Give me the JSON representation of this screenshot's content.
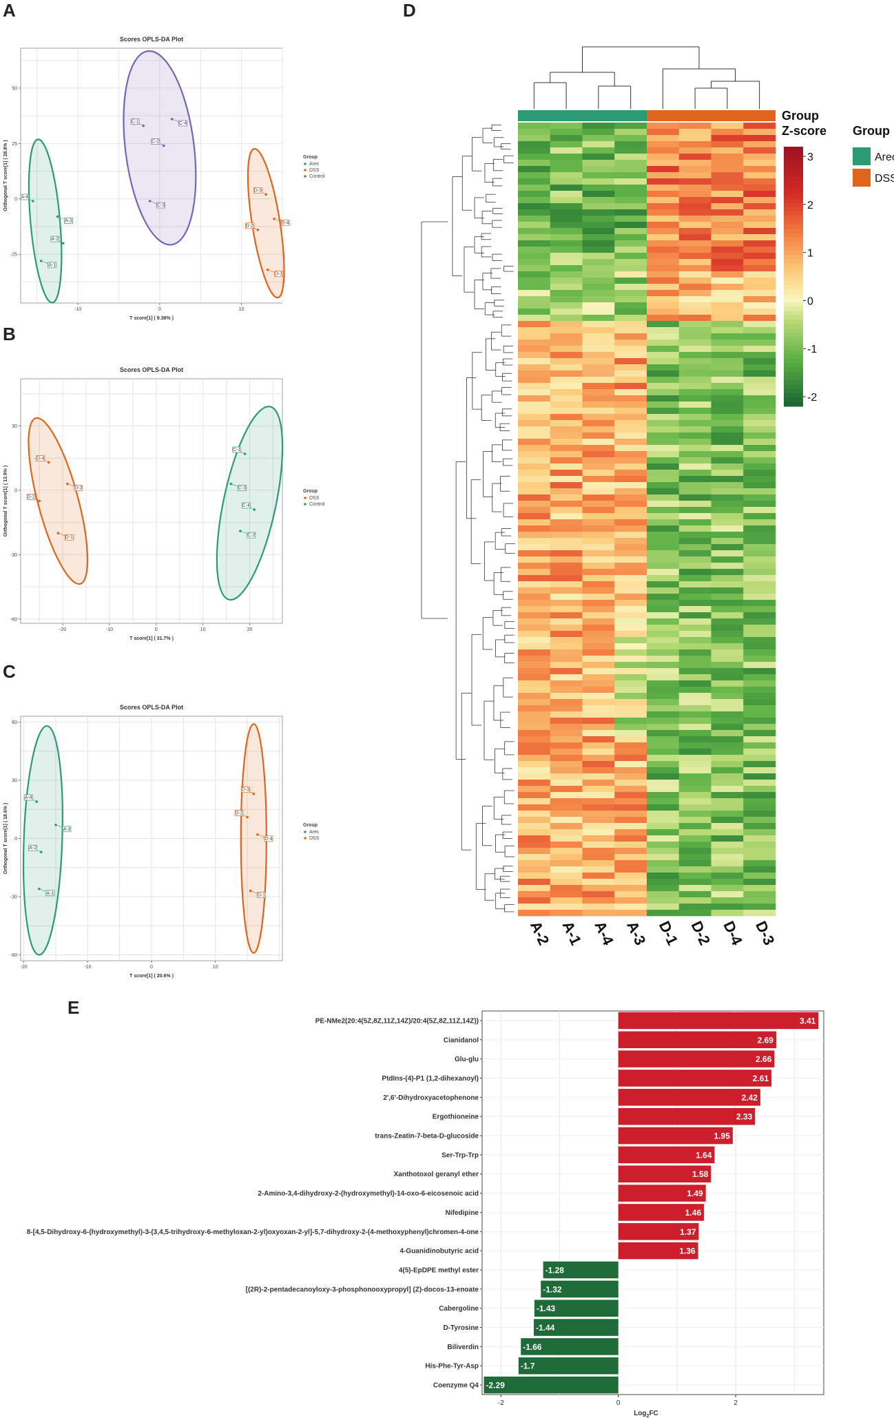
{
  "panels": {
    "A": "A",
    "B": "B",
    "C": "C",
    "D": "D",
    "E": "E"
  },
  "colors": {
    "arec": "#2c9b74",
    "dss": "#e0641a",
    "control": "#7a62b8",
    "up": "#cd1f2b",
    "down": "#1e6b37"
  },
  "chart_data": [
    {
      "type": "scatter",
      "panel": "A",
      "title": "Scores OPLS-DA Plot",
      "xlabel": "T score[1] ( 9.38% )",
      "ylabel": "Orthogonal T score[1] ( 28.8% )",
      "xticks": [
        "-10",
        "0",
        "10"
      ],
      "yticks": [
        "50",
        "25",
        "0",
        "-25"
      ],
      "legend": {
        "title": "Group",
        "entries": [
          "Arec",
          "DSS",
          "Control"
        ]
      },
      "xlim": [
        -17,
        15
      ],
      "ylim": [
        -47,
        68
      ],
      "ticks_x": [
        -10,
        0,
        10
      ],
      "ticks_y": [
        50,
        25,
        0,
        -25
      ],
      "groups": [
        {
          "name": "Arec",
          "color": "#2c9b74",
          "points": [
            {
              "x": -15.5,
              "y": -1,
              "label": "A-4"
            },
            {
              "x": -12.5,
              "y": -8,
              "label": "A-3"
            },
            {
              "x": -11.8,
              "y": -20,
              "label": "A-2"
            },
            {
              "x": -14.5,
              "y": -28,
              "label": "A-1"
            }
          ],
          "ellipse": {
            "cx": -14,
            "cy": -10,
            "rx": 1.8,
            "ry": 37,
            "rot": -5
          }
        },
        {
          "name": "DSS",
          "color": "#e0641a",
          "points": [
            {
              "x": 13,
              "y": 2,
              "label": "D-3"
            },
            {
              "x": 14,
              "y": -9,
              "label": "D-4"
            },
            {
              "x": 12,
              "y": -14,
              "label": "D-2"
            },
            {
              "x": 13.2,
              "y": -32,
              "label": "D-1"
            }
          ],
          "ellipse": {
            "cx": 13,
            "cy": -11,
            "rx": 1.7,
            "ry": 34,
            "rot": -9
          }
        },
        {
          "name": "Control",
          "color": "#7a62b8",
          "points": [
            {
              "x": -2,
              "y": 33,
              "label": "C-1"
            },
            {
              "x": 1.5,
              "y": 36,
              "label": "C-4"
            },
            {
              "x": 0.5,
              "y": 24,
              "label": "C-2"
            },
            {
              "x": -1.2,
              "y": -1,
              "label": "C-3"
            }
          ],
          "ellipse": {
            "cx": 0,
            "cy": 23,
            "rx": 4.2,
            "ry": 44,
            "rot": -7
          }
        }
      ]
    },
    {
      "type": "scatter",
      "panel": "B",
      "title": "Scores OPLS-DA Plot",
      "xlabel": "T score[1] ( 31.7% )",
      "ylabel": "Orthogonal T score[1] ( 13.9% )",
      "xticks": [
        "-20",
        "-10",
        "0",
        "10",
        "20"
      ],
      "yticks": [
        "30",
        "0",
        "-30",
        "-60"
      ],
      "legend": {
        "title": "Group",
        "entries": [
          "DSS",
          "Control"
        ]
      },
      "xlim": [
        -29,
        27
      ],
      "ylim": [
        -62,
        52
      ],
      "ticks_x": [
        -20,
        -10,
        0,
        10,
        20
      ],
      "ticks_y": [
        30,
        0,
        -30,
        -60
      ],
      "groups": [
        {
          "name": "DSS",
          "color": "#e0641a",
          "points": [
            {
              "x": -23,
              "y": 13,
              "label": "D-4"
            },
            {
              "x": -19,
              "y": 3,
              "label": "D-3"
            },
            {
              "x": -25,
              "y": -5,
              "label": "D-2"
            },
            {
              "x": -21,
              "y": -20,
              "label": "D-1"
            }
          ],
          "ellipse": {
            "cx": -21,
            "cy": -5,
            "rx": 4.3,
            "ry": 40,
            "rot": -15
          }
        },
        {
          "name": "Control",
          "color": "#2c9b74",
          "points": [
            {
              "x": 19,
              "y": 17,
              "label": "C-1"
            },
            {
              "x": 16,
              "y": 3,
              "label": "C-3"
            },
            {
              "x": 21,
              "y": -9,
              "label": "C-4"
            },
            {
              "x": 18,
              "y": -19,
              "label": "C-2"
            }
          ],
          "ellipse": {
            "cx": 20,
            "cy": -6,
            "rx": 5.6,
            "ry": 46,
            "rot": 12
          }
        }
      ]
    },
    {
      "type": "scatter",
      "panel": "C",
      "title": "Scores OPLS-DA Plot",
      "xlabel": "T score[1] ( 20.6% )",
      "ylabel": "Orthogonal T score[1] ( 18.6% )",
      "xticks": [
        "-20",
        "-10",
        "0",
        "10"
      ],
      "yticks": [
        "60",
        "30",
        "0",
        "-30",
        "-60"
      ],
      "legend": {
        "title": "Group",
        "entries": [
          "Arec",
          "DSS"
        ]
      },
      "xlim": [
        -20.5,
        20.5
      ],
      "ylim": [
        -63,
        63
      ],
      "ticks_x": [
        -20,
        -10,
        0,
        10
      ],
      "ticks_y": [
        60,
        30,
        0,
        -30,
        -60
      ],
      "groups": [
        {
          "name": "Arec",
          "color": "#2c9b74",
          "points": [
            {
              "x": -18,
              "y": 19,
              "label": "A-4"
            },
            {
              "x": -15,
              "y": 7,
              "label": "A-3"
            },
            {
              "x": -17.3,
              "y": -7,
              "label": "A-2"
            },
            {
              "x": -17.6,
              "y": -26,
              "label": "A-1"
            }
          ],
          "ellipse": {
            "cx": -17,
            "cy": -1,
            "rx": 3.0,
            "ry": 59,
            "rot": 2
          }
        },
        {
          "name": "DSS",
          "color": "#e0641a",
          "points": [
            {
              "x": 16,
              "y": 23,
              "label": "D-3"
            },
            {
              "x": 16.6,
              "y": 2,
              "label": "D-4"
            },
            {
              "x": 15,
              "y": 11,
              "label": "D-2"
            },
            {
              "x": 15.5,
              "y": -27,
              "label": "D-1"
            }
          ],
          "ellipse": {
            "cx": 16,
            "cy": 0,
            "rx": 2.0,
            "ry": 59,
            "rot": 0
          }
        }
      ]
    },
    {
      "type": "heatmap",
      "panel": "D",
      "columns": [
        "A-2",
        "A-1",
        "A-4",
        "A-3",
        "D-1",
        "D-2",
        "D-4",
        "D-3"
      ],
      "group_bar_label": "Group",
      "colorbar_label": "Z-score",
      "colorbar_ticks": [
        "3",
        "2",
        "1",
        "0",
        "-1",
        "-2"
      ],
      "legend": {
        "title": "Group",
        "entries": [
          "Arec",
          "DSS"
        ]
      },
      "range": [
        -2.2,
        3.2
      ],
      "rows": 128
    },
    {
      "type": "bar",
      "panel": "E",
      "orientation": "horizontal",
      "xlabel": "Log2FC",
      "xlabel_main": "Log",
      "xlabel_sub": "2",
      "xlabel_end": "FC",
      "xticks": [
        "-2",
        "0",
        "2"
      ],
      "xlim": [
        -2.32,
        3.5
      ],
      "ticks": [
        -2,
        0,
        2
      ],
      "categories": [
        "PE-NMe2(20:4(5Z,8Z,11Z,14Z)/20:4(5Z,8Z,11Z,14Z))",
        "Cianidanol",
        "Glu-glu",
        "PtdIns-(4)-P1 (1,2-dihexanoyl)",
        "2',6'-Dihydroxyacetophenone",
        "Ergothioneine",
        "trans-Zeatin-7-beta-D-glucoside",
        "Ser-Trp-Trp",
        "Xanthotoxol geranyl ether",
        "2-Amino-3,4-dihydroxy-2-(hydroxymethyl)-14-oxo-6-eicosenoic acid",
        "Nifedipine",
        "8-[4,5-Dihydroxy-6-(hydroxymethyl)-3-(3,4,5-trihydroxy-6-methyloxan-2-yl)oxyoxan-2-yl]-5,7-dihydroxy-2-(4-methoxyphenyl)chromen-4-one",
        "4-Guanidinobutyric acid",
        "4(5)-EpDPE methyl ester",
        "[(2R)-2-pentadecanoyloxy-3-phosphonooxypropyl] (Z)-docos-13-enoate",
        "Cabergoline",
        "D-Tyrosine",
        "Biliverdin",
        "His-Phe-Tyr-Asp",
        "Coenzyme Q4"
      ],
      "values": [
        3.41,
        2.69,
        2.66,
        2.61,
        2.42,
        2.33,
        1.95,
        1.64,
        1.58,
        1.49,
        1.46,
        1.37,
        1.36,
        -1.28,
        -1.32,
        -1.43,
        -1.44,
        -1.66,
        -1.7,
        -2.29
      ],
      "value_labels": [
        "3.41",
        "2.69",
        "2.66",
        "2.61",
        "2.42",
        "2.33",
        "1.95",
        "1.64",
        "1.58",
        "1.49",
        "1.46",
        "1.37",
        "1.36",
        "-1.28",
        "-1.32",
        "-1.43",
        "-1.44",
        "-1.66",
        "-1.7",
        "-2.29"
      ]
    }
  ]
}
